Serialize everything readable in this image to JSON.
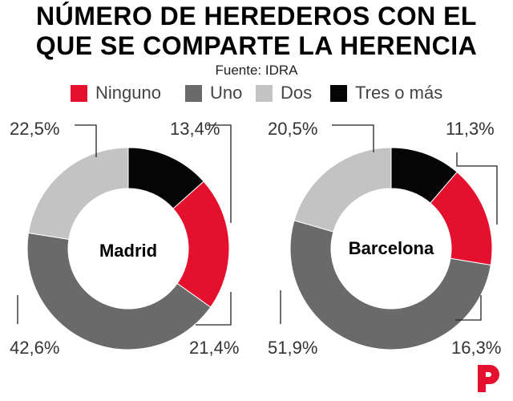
{
  "title_lines": [
    "NÚMERO DE HEREDEROS CON EL",
    "QUE SE COMPARTE LA HERENCIA"
  ],
  "source": "Fuente: IDRA",
  "colors": {
    "Ninguno": "#e4102e",
    "Uno": "#6a6a6a",
    "Dos": "#c3c3c3",
    "Tres o más": "#050505",
    "brand": "#e4102e"
  },
  "legend": [
    "Ninguno",
    "Uno",
    "Dos",
    "Tres o más"
  ],
  "chart_data": [
    {
      "type": "pie",
      "title": "Madrid",
      "categories": [
        "Ninguno",
        "Uno",
        "Dos",
        "Tres o más"
      ],
      "values": [
        21.4,
        42.6,
        22.5,
        13.4
      ],
      "value_labels": [
        "21,4%",
        "42,6%",
        "22,5%",
        "13,4%"
      ]
    },
    {
      "type": "pie",
      "title": "Barcelona",
      "categories": [
        "Ninguno",
        "Uno",
        "Dos",
        "Tres o más"
      ],
      "values": [
        16.3,
        51.9,
        20.5,
        11.3
      ],
      "value_labels": [
        "16,3%",
        "51,9%",
        "20,5%",
        "11,3%"
      ]
    }
  ],
  "logo": "brand-p-logo"
}
